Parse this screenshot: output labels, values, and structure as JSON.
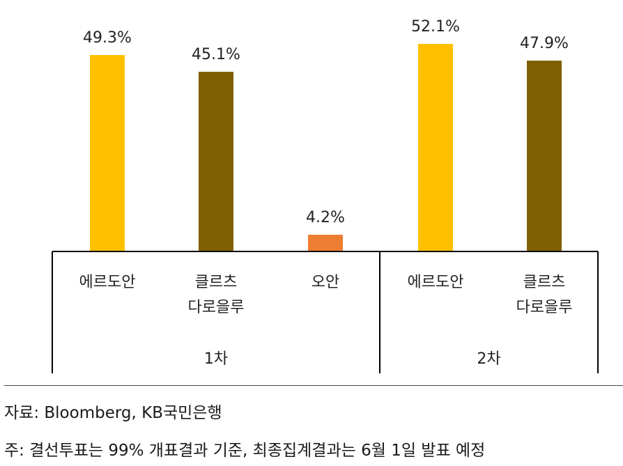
{
  "chart_data": {
    "type": "bar",
    "groups": [
      {
        "label": "1차",
        "bars": [
          {
            "category": "에르도안",
            "value": 49.3,
            "value_label": "49.3%",
            "color": "#FFC000"
          },
          {
            "category": "클르츠\n다로을루",
            "value": 45.1,
            "value_label": "45.1%",
            "color": "#7F6000"
          },
          {
            "category": "오안",
            "value": 4.2,
            "value_label": "4.2%",
            "color": "#ED7D31"
          }
        ]
      },
      {
        "label": "2차",
        "bars": [
          {
            "category": "에르도안",
            "value": 52.1,
            "value_label": "52.1%",
            "color": "#FFC000"
          },
          {
            "category": "클르츠\n다로을루",
            "value": 47.9,
            "value_label": "47.9%",
            "color": "#7F6000"
          }
        ]
      }
    ],
    "ylim": [
      0,
      55
    ],
    "grid": false,
    "legend": "none"
  },
  "footnotes": {
    "source": "자료: Bloomberg, KB국민은행",
    "note": "주: 결선투표는 99% 개표결과 기준, 최종집계결과는 6월 1일 발표 예정"
  }
}
